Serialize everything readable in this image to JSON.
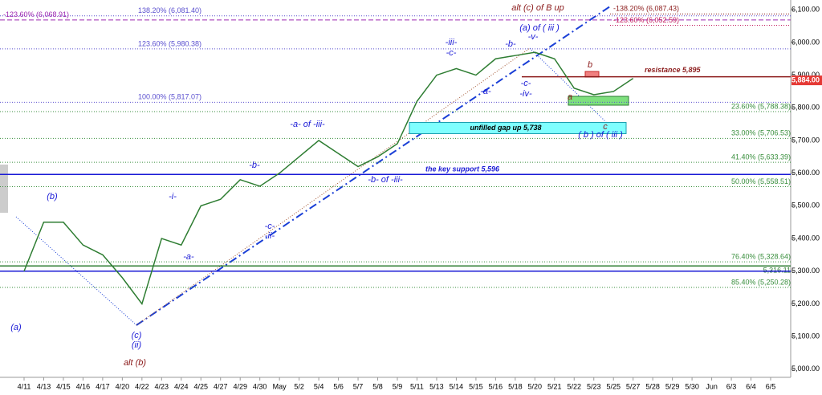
{
  "chart_data": {
    "type": "line",
    "categories": [
      "4/11",
      "4/13",
      "4/15",
      "4/16",
      "4/17",
      "4/20",
      "4/22",
      "4/23",
      "4/24",
      "4/25",
      "4/27",
      "4/29",
      "4/30",
      "May",
      "5/2",
      "5/4",
      "5/6",
      "5/7",
      "5/8",
      "5/9",
      "5/11",
      "5/13",
      "5/14",
      "5/15",
      "5/16",
      "5/18",
      "5/20",
      "5/21",
      "5/22",
      "5/23",
      "5/25",
      "5/27",
      "5/28",
      "5/29",
      "5/30",
      "Jun",
      "6/3",
      "6/4",
      "6/5"
    ],
    "series": [
      {
        "name": "ES",
        "color": "#2e7d32",
        "values": [
          5300,
          5450,
          5450,
          5380,
          5350,
          5280,
          5200,
          5400,
          5380,
          5500,
          5520,
          5580,
          5560,
          5600,
          5650,
          5700,
          5660,
          5620,
          5650,
          5690,
          5820,
          5900,
          5920,
          5900,
          5950,
          5960,
          5970,
          5950,
          5860,
          5840,
          5850,
          5890,
          null,
          null,
          null,
          null,
          null,
          null,
          null
        ]
      }
    ],
    "ylim": [
      4975,
      6130
    ],
    "yticks": [
      {
        "value": 5000,
        "label": "5,000.00"
      },
      {
        "value": 5100,
        "label": "5,100.00"
      },
      {
        "value": 5200,
        "label": "5,200.00"
      },
      {
        "value": 5300,
        "label": "5,300.00"
      },
      {
        "value": 5400,
        "label": "5,400.00"
      },
      {
        "value": 5500,
        "label": "5,500.00"
      },
      {
        "value": 5600,
        "label": "5,600.00"
      },
      {
        "value": 5700,
        "label": "5,700.00"
      },
      {
        "value": 5800,
        "label": "5,800.00"
      },
      {
        "value": 5900,
        "label": "5,900.00"
      },
      {
        "value": 6000,
        "label": "6,000.00"
      },
      {
        "value": 6100,
        "label": "6,100.00"
      }
    ],
    "last_price": {
      "value": 5884,
      "label": "5,884.00",
      "color": "#e53935"
    },
    "levels": [
      {
        "value": 6081.4,
        "label": "138.20% (6,081.40)",
        "color": "#5a4fcf"
      },
      {
        "value": 6068.91,
        "label": "-123.60% (6,068.91)",
        "color": "#9c27b0"
      },
      {
        "value": 5980.38,
        "label": "123.60% (5,980.38)",
        "color": "#5a4fcf"
      },
      {
        "value": 5817.07,
        "label": "100.00% (5,817.07)",
        "color": "#5a4fcf"
      },
      {
        "value": 6087.43,
        "label": "-138.20% (6,087.43)",
        "color": "#8b1a1a"
      },
      {
        "value": 6052.59,
        "label": "-123.60% (6,052.59)",
        "color": "#c2185b"
      },
      {
        "value": 5788.38,
        "label": "23.60% (5,788.38)",
        "color": "#388e3c"
      },
      {
        "value": 5706.53,
        "label": "33.00% (5,706.53)",
        "color": "#388e3c"
      },
      {
        "value": 5633.39,
        "label": "41.40% (5,633.39)",
        "color": "#388e3c"
      },
      {
        "value": 5558.51,
        "label": "50.00% (5,558.51)",
        "color": "#388e3c"
      },
      {
        "value": 5328.64,
        "label": "76.40% (5,328.64)",
        "color": "#388e3c"
      },
      {
        "value": 5250.28,
        "label": "85.40% (5,250.28)",
        "color": "#388e3c"
      },
      {
        "value": 5316.11,
        "label": "5,316.11",
        "color": "#2e7d32"
      }
    ],
    "key_lines": [
      {
        "value": 5895,
        "label": "resistance 5,895",
        "color": "#8b1a1a"
      },
      {
        "value": 5596,
        "label": "the key support 5,596",
        "color": "#1a1ad6"
      },
      {
        "value": 5300,
        "color": "#1a1ad6"
      }
    ],
    "gap": {
      "value": 5738,
      "label": "unfilled gap up 5,738",
      "color": "#7fffff"
    },
    "annotations": [
      "(a)",
      "(b)",
      "(c)",
      "(ii)",
      "alt (b)",
      "-i-",
      "-a-",
      "-b-",
      "-c-",
      "-ii-",
      "-a- of -iii-",
      "-b- of -iii-",
      "-iii-",
      "-c-",
      "-b-",
      "(a) of ( iii )",
      "-v-",
      "-a-",
      "-c-",
      "-iv-",
      "alt (c) of B up",
      "b",
      "a",
      "c",
      "( b ) of ( iii )"
    ]
  }
}
